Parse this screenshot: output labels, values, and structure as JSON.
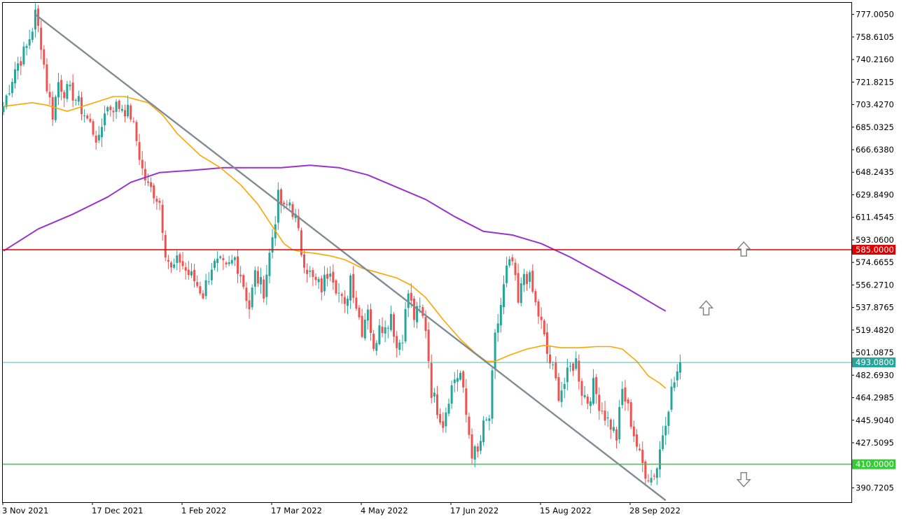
{
  "chart_data": {
    "type": "candlestick",
    "title": "",
    "xlabel": "",
    "ylabel": "",
    "ylim": [
      379.0,
      786.5
    ],
    "grid": false,
    "x_ticks": [
      "3 Nov 2021",
      "17 Dec 2021",
      "1 Feb 2022",
      "17 Mar 2022",
      "4 May 2022",
      "17 Jun 2022",
      "15 Aug 2022",
      "28 Sep 2022"
    ],
    "y_ticks": [
      "777.0050",
      "758.6105",
      "740.2160",
      "721.8215",
      "703.4270",
      "685.0325",
      "666.6380",
      "648.2435",
      "629.8490",
      "611.4545",
      "593.0600",
      "574.6655",
      "556.2710",
      "537.8765",
      "519.4820",
      "501.0875",
      "482.6930",
      "464.2985",
      "445.9040",
      "427.5095",
      "390.7205"
    ],
    "colors": {
      "bull": "#26a69a",
      "bear": "#ef5350",
      "ma_fast": "#ffa500",
      "ma_slow": "#9933cc",
      "resistance": "#dd0000",
      "support": "#33cc33",
      "current": "#26a69a",
      "trendline": "#7f8c94",
      "arrow": "#7f7f7f"
    },
    "levels": [
      {
        "name": "resistance",
        "value": 585.0,
        "label": "585.0000"
      },
      {
        "name": "current-price",
        "value": 493.08,
        "label": "493.0800"
      },
      {
        "name": "support",
        "value": 410.0,
        "label": "410.0000"
      }
    ],
    "trendline": {
      "from_index": 11,
      "from_value": 777.0,
      "to_index": 229,
      "to_value": 380.5
    },
    "arrows": [
      {
        "name": "up-arrow-upper",
        "direction": "up",
        "index": 256,
        "value": 585.0
      },
      {
        "name": "up-arrow-lower",
        "direction": "up",
        "index": 243,
        "value": 537.0
      },
      {
        "name": "down-arrow",
        "direction": "down",
        "index": 256,
        "value": 398.0
      }
    ],
    "ma_fast_points": [
      [
        0,
        702
      ],
      [
        10,
        705
      ],
      [
        15,
        703
      ],
      [
        22,
        698
      ],
      [
        30,
        704
      ],
      [
        38,
        710
      ],
      [
        42,
        710
      ],
      [
        50,
        705
      ],
      [
        55,
        695
      ],
      [
        60,
        680
      ],
      [
        68,
        662
      ],
      [
        75,
        652
      ],
      [
        82,
        638
      ],
      [
        88,
        622
      ],
      [
        93,
        604
      ],
      [
        97,
        590
      ],
      [
        100,
        585
      ],
      [
        104,
        583
      ],
      [
        108,
        582
      ],
      [
        113,
        580
      ],
      [
        118,
        577
      ],
      [
        124,
        570
      ],
      [
        130,
        566
      ],
      [
        136,
        562
      ],
      [
        141,
        556
      ],
      [
        146,
        546
      ],
      [
        152,
        528
      ],
      [
        158,
        512
      ],
      [
        163,
        501
      ],
      [
        167,
        494
      ],
      [
        170,
        494
      ],
      [
        175,
        499
      ],
      [
        181,
        504
      ],
      [
        187,
        507
      ],
      [
        193,
        505
      ],
      [
        199,
        505
      ],
      [
        205,
        506
      ],
      [
        210,
        506
      ],
      [
        214,
        504
      ],
      [
        219,
        494
      ],
      [
        223,
        482
      ],
      [
        227,
        476
      ],
      [
        229,
        472
      ]
    ],
    "ma_slow_points": [
      [
        0,
        584
      ],
      [
        12,
        602
      ],
      [
        24,
        614
      ],
      [
        36,
        628
      ],
      [
        44,
        640
      ],
      [
        54,
        648
      ],
      [
        66,
        650
      ],
      [
        76,
        652
      ],
      [
        86,
        652
      ],
      [
        96,
        652
      ],
      [
        106,
        654
      ],
      [
        116,
        652
      ],
      [
        126,
        646
      ],
      [
        136,
        636
      ],
      [
        146,
        626
      ],
      [
        156,
        612
      ],
      [
        166,
        600
      ],
      [
        176,
        597
      ],
      [
        186,
        590
      ],
      [
        196,
        579
      ],
      [
        206,
        566
      ],
      [
        216,
        553
      ],
      [
        226,
        539
      ],
      [
        229,
        535
      ]
    ],
    "ohlc_seed": [
      [
        0,
        702
      ],
      [
        2,
        718
      ],
      [
        4,
        733
      ],
      [
        6,
        741
      ],
      [
        8,
        750
      ],
      [
        10,
        766
      ],
      [
        11,
        777
      ],
      [
        13,
        754
      ],
      [
        15,
        718
      ],
      [
        17,
        696
      ],
      [
        19,
        722
      ],
      [
        21,
        715
      ],
      [
        24,
        712
      ],
      [
        27,
        700
      ],
      [
        30,
        687
      ],
      [
        33,
        672
      ],
      [
        35,
        700
      ],
      [
        38,
        702
      ],
      [
        41,
        702
      ],
      [
        44,
        695
      ],
      [
        46,
        674
      ],
      [
        48,
        650
      ],
      [
        50,
        636
      ],
      [
        52,
        632
      ],
      [
        54,
        624
      ],
      [
        56,
        585
      ],
      [
        58,
        568
      ],
      [
        61,
        577
      ],
      [
        63,
        568
      ],
      [
        66,
        560
      ],
      [
        69,
        549
      ],
      [
        72,
        572
      ],
      [
        75,
        573
      ],
      [
        77,
        568
      ],
      [
        80,
        578
      ],
      [
        82,
        566
      ],
      [
        85,
        538
      ],
      [
        87,
        565
      ],
      [
        90,
        552
      ],
      [
        93,
        596
      ],
      [
        95,
        627
      ],
      [
        97,
        617
      ],
      [
        99,
        624
      ],
      [
        101,
        610
      ],
      [
        103,
        584
      ],
      [
        105,
        570
      ],
      [
        107,
        560
      ],
      [
        110,
        554
      ],
      [
        113,
        572
      ],
      [
        115,
        556
      ],
      [
        118,
        536
      ],
      [
        120,
        564
      ],
      [
        122,
        540
      ],
      [
        124,
        520
      ],
      [
        126,
        540
      ],
      [
        128,
        500
      ],
      [
        130,
        528
      ],
      [
        132,
        520
      ],
      [
        134,
        534
      ],
      [
        136,
        505
      ],
      [
        138,
        516
      ],
      [
        140,
        550
      ],
      [
        142,
        530
      ],
      [
        144,
        536
      ],
      [
        146,
        522
      ],
      [
        148,
        470
      ],
      [
        150,
        456
      ],
      [
        152,
        444
      ],
      [
        154,
        466
      ],
      [
        156,
        480
      ],
      [
        158,
        484
      ],
      [
        160,
        450
      ],
      [
        162,
        420
      ],
      [
        164,
        418
      ],
      [
        166,
        440
      ],
      [
        168,
        448
      ],
      [
        170,
        512
      ],
      [
        172,
        540
      ],
      [
        174,
        568
      ],
      [
        176,
        575
      ],
      [
        178,
        540
      ],
      [
        180,
        566
      ],
      [
        182,
        560
      ],
      [
        184,
        540
      ],
      [
        186,
        524
      ],
      [
        188,
        500
      ],
      [
        190,
        486
      ],
      [
        192,
        468
      ],
      [
        194,
        476
      ],
      [
        196,
        488
      ],
      [
        198,
        494
      ],
      [
        200,
        470
      ],
      [
        202,
        462
      ],
      [
        204,
        474
      ],
      [
        206,
        460
      ],
      [
        208,
        450
      ],
      [
        210,
        442
      ],
      [
        212,
        432
      ],
      [
        214,
        470
      ],
      [
        216,
        455
      ],
      [
        218,
        435
      ],
      [
        220,
        416
      ],
      [
        222,
        404
      ],
      [
        224,
        399
      ],
      [
        226,
        408
      ],
      [
        228,
        436
      ],
      [
        229,
        448
      ],
      [
        231,
        470
      ],
      [
        233,
        485
      ],
      [
        234,
        493.08
      ]
    ]
  }
}
